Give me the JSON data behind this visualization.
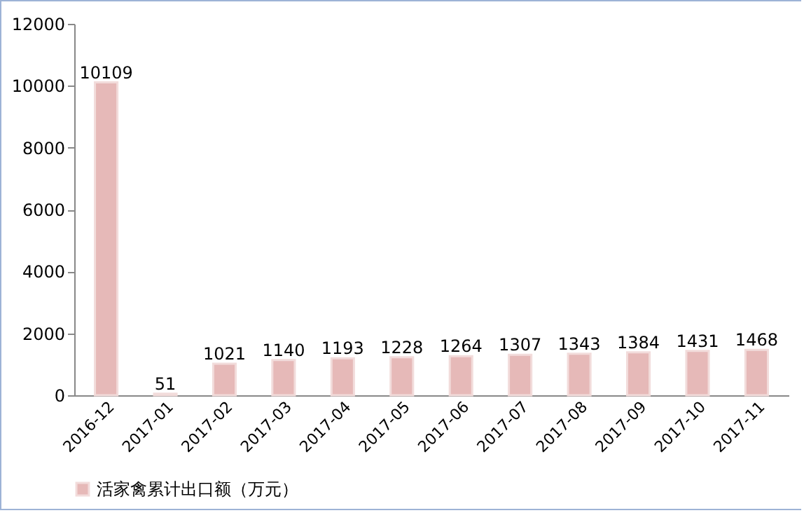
{
  "chart_data": {
    "type": "bar",
    "categories": [
      "2016-12",
      "2017-01",
      "2017-02",
      "2017-03",
      "2017-04",
      "2017-05",
      "2017-06",
      "2017-07",
      "2017-08",
      "2017-09",
      "2017-10",
      "2017-11"
    ],
    "series": [
      {
        "name": "活家禽累计出口额（万元）",
        "color": "#e6b9b8",
        "values": [
          10109,
          51,
          1021,
          1140,
          1193,
          1228,
          1264,
          1307,
          1343,
          1384,
          1431,
          1468
        ]
      }
    ],
    "ylim": [
      0,
      12000
    ],
    "yticks": [
      0,
      2000,
      4000,
      6000,
      8000,
      10000,
      12000
    ],
    "grid": false,
    "legend": "bottom left",
    "data_labels": true
  }
}
